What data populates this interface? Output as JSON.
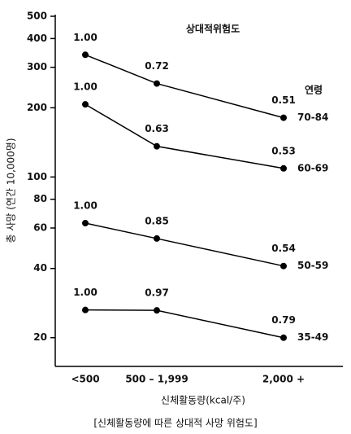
{
  "chart_data": {
    "type": "line",
    "annotation": "상대적위험도",
    "legend_title": "연령",
    "ylabel": "총 사망 (연간 10,000명)",
    "xlabel": "신체활동량(kcal/주)",
    "caption": "[신체활동량에 따른 상대적 사망 위험도]",
    "categories": [
      "<500",
      "500 – 1,999",
      "2,000 +"
    ],
    "log_scale": true,
    "ylim": [
      15,
      500
    ],
    "yticks": [
      20,
      40,
      60,
      80,
      100,
      200,
      300,
      400,
      500
    ],
    "series": [
      {
        "name": "70-84",
        "color": "#000000",
        "values": [
          340,
          255,
          181
        ],
        "relative_risk_labels": [
          "1.00",
          "0.72",
          "0.51"
        ]
      },
      {
        "name": "60-69",
        "color": "#000000",
        "values": [
          207,
          136,
          109
        ],
        "relative_risk_labels": [
          "1.00",
          "0.63",
          "0.53"
        ]
      },
      {
        "name": "50-59",
        "color": "#000000",
        "values": [
          63,
          54,
          41
        ],
        "relative_risk_labels": [
          "1.00",
          "0.85",
          "0.54"
        ]
      },
      {
        "name": "35-49",
        "color": "#000000",
        "values": [
          26.4,
          26.3,
          20
        ],
        "relative_risk_labels": [
          "1.00",
          "0.97",
          "0.79"
        ]
      }
    ]
  }
}
